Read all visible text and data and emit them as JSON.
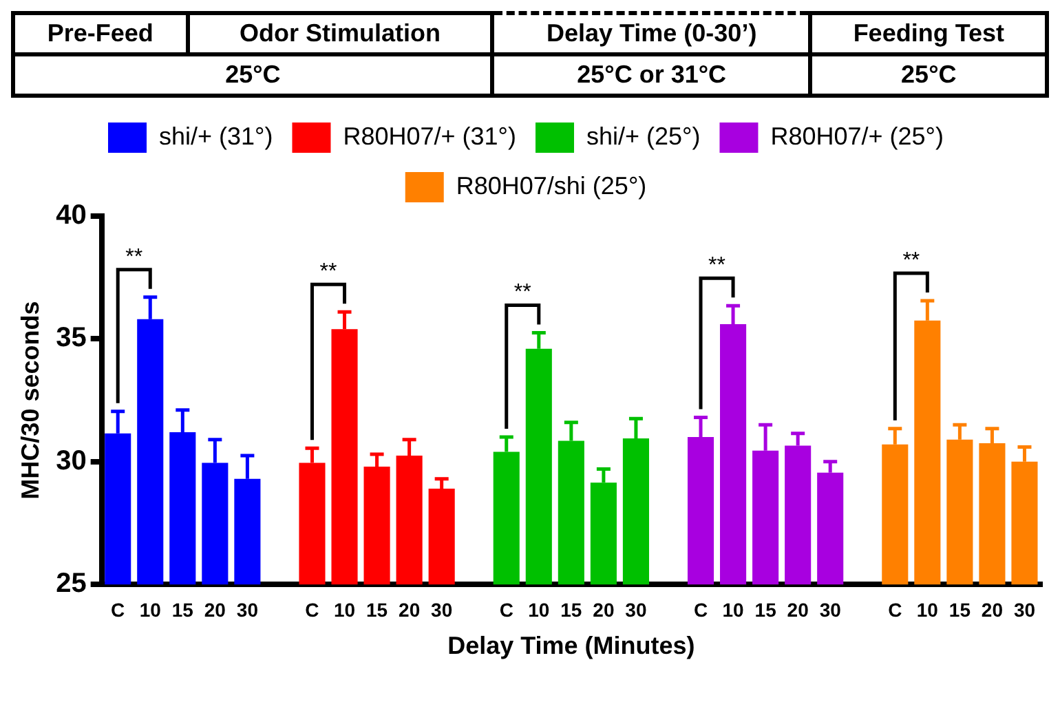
{
  "chart_data": {
    "type": "bar",
    "xlabel": "Delay Time (Minutes)",
    "ylabel": "MHC/30 seconds",
    "categories": [
      "C",
      "10",
      "15",
      "20",
      "30",
      null,
      "C",
      "10",
      "15",
      "20",
      "30",
      null,
      "C",
      "10",
      "15",
      "20",
      "30",
      null,
      "C",
      "10",
      "15",
      "20",
      "30",
      null,
      "C",
      "10",
      "15",
      "20",
      "30"
    ],
    "series": [
      {
        "name": "shi/+ (31°)",
        "color": "#0000ff",
        "values": [
          31.15,
          35.8,
          31.2,
          29.95,
          29.3,
          null,
          null,
          null,
          null,
          null,
          null,
          null,
          null,
          null,
          null,
          null,
          null,
          null,
          null,
          null,
          null,
          null,
          null,
          null,
          null,
          null,
          null,
          null,
          null
        ],
        "errors": [
          0.9,
          0.9,
          0.9,
          0.95,
          0.95,
          null,
          null,
          null,
          null,
          null,
          null,
          null,
          null,
          null,
          null,
          null,
          null,
          null,
          null,
          null,
          null,
          null,
          null,
          null,
          null,
          null,
          null,
          null,
          null
        ]
      },
      {
        "name": "R80H07/+ (31°)",
        "color": "#ff0000",
        "values": [
          null,
          null,
          null,
          null,
          null,
          null,
          29.95,
          35.4,
          29.8,
          30.25,
          28.9,
          null,
          null,
          null,
          null,
          null,
          null,
          null,
          null,
          null,
          null,
          null,
          null,
          null,
          null,
          null,
          null,
          null,
          null
        ],
        "errors": [
          null,
          null,
          null,
          null,
          null,
          null,
          0.6,
          0.7,
          0.5,
          0.65,
          0.4,
          null,
          null,
          null,
          null,
          null,
          null,
          null,
          null,
          null,
          null,
          null,
          null,
          null,
          null,
          null,
          null,
          null,
          null
        ]
      },
      {
        "name": "shi/+ (25°)",
        "color": "#00c000",
        "values": [
          null,
          null,
          null,
          null,
          null,
          null,
          null,
          null,
          null,
          null,
          null,
          null,
          30.4,
          34.6,
          30.85,
          29.15,
          30.95,
          null,
          null,
          null,
          null,
          null,
          null,
          null,
          null,
          null,
          null,
          null,
          null
        ],
        "errors": [
          null,
          null,
          null,
          null,
          null,
          null,
          null,
          null,
          null,
          null,
          null,
          null,
          0.6,
          0.65,
          0.75,
          0.55,
          0.8,
          null,
          null,
          null,
          null,
          null,
          null,
          null,
          null,
          null,
          null,
          null,
          null
        ]
      },
      {
        "name": "R80H07/+ (25°)",
        "color": "#a800e0",
        "values": [
          null,
          null,
          null,
          null,
          null,
          null,
          null,
          null,
          null,
          null,
          null,
          null,
          null,
          null,
          null,
          null,
          null,
          null,
          31.0,
          35.6,
          30.45,
          30.65,
          29.55,
          null,
          null,
          null,
          null,
          null,
          null
        ],
        "errors": [
          null,
          null,
          null,
          null,
          null,
          null,
          null,
          null,
          null,
          null,
          null,
          null,
          null,
          null,
          null,
          null,
          null,
          null,
          0.8,
          0.75,
          1.05,
          0.5,
          0.45,
          null,
          null,
          null,
          null,
          null,
          null
        ]
      },
      {
        "name": "R80H07/shi (25°)",
        "color": "#ff8000",
        "values": [
          null,
          null,
          null,
          null,
          null,
          null,
          null,
          null,
          null,
          null,
          null,
          null,
          null,
          null,
          null,
          null,
          null,
          null,
          null,
          null,
          null,
          null,
          null,
          null,
          30.7,
          35.75,
          30.9,
          30.75,
          30.0
        ],
        "errors": [
          null,
          null,
          null,
          null,
          null,
          null,
          null,
          null,
          null,
          null,
          null,
          null,
          null,
          null,
          null,
          null,
          null,
          null,
          null,
          null,
          null,
          null,
          null,
          null,
          0.65,
          0.8,
          0.6,
          0.6,
          0.6
        ]
      }
    ],
    "ylim": [
      25,
      40
    ],
    "yticks": [
      25,
      30,
      35,
      40
    ],
    "grid": false,
    "legend": "top",
    "annotations": [
      "**",
      "**",
      "**",
      "**",
      "**",
      "Pre-Feed",
      "Odor Stimulation",
      "Delay Time (0-30’)",
      "Feeding Test",
      "25°C",
      "25°C or 31°C",
      "25°C"
    ]
  }
}
